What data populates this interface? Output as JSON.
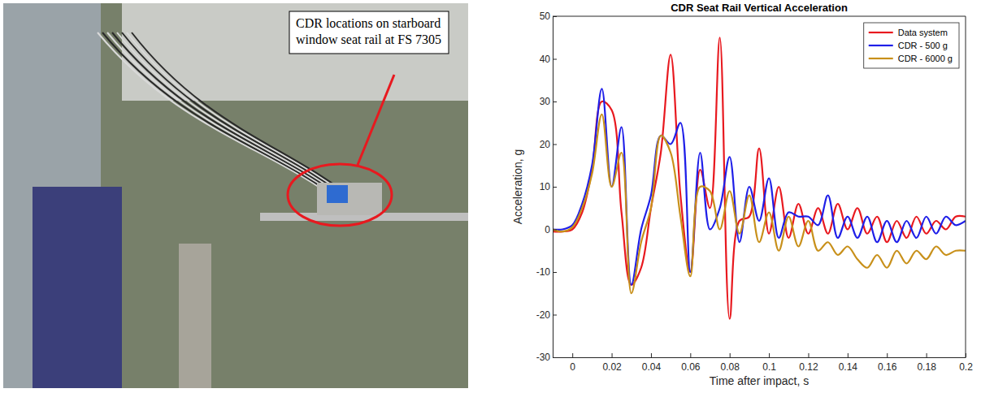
{
  "chart_data": {
    "type": "line",
    "title": "CDR Seat Rail Vertical Acceleration",
    "x_label": "Time after impact, s",
    "y_label": "Acceleration, g",
    "x": [
      -0.01,
      -0.005,
      0,
      0.005,
      0.01,
      0.015,
      0.02,
      0.025,
      0.03,
      0.035,
      0.04,
      0.045,
      0.05,
      0.055,
      0.06,
      0.065,
      0.07,
      0.075,
      0.08,
      0.085,
      0.09,
      0.095,
      0.1,
      0.105,
      0.11,
      0.115,
      0.12,
      0.125,
      0.13,
      0.135,
      0.14,
      0.145,
      0.15,
      0.155,
      0.16,
      0.165,
      0.17,
      0.175,
      0.18,
      0.185,
      0.19,
      0.195,
      0.2
    ],
    "series": [
      {
        "name": "Data system",
        "color": "#e8191f",
        "values": [
          -0.5,
          -0.5,
          0,
          4,
          14,
          30,
          28,
          4,
          -13,
          -9,
          5,
          18,
          41,
          8,
          -10,
          14,
          5,
          45,
          -21,
          2,
          3,
          19,
          -1,
          10,
          -2,
          6,
          -1,
          5,
          -1,
          6,
          0,
          5,
          -1,
          3,
          -3,
          2,
          -2,
          3,
          -1,
          2,
          0,
          3,
          3
        ]
      },
      {
        "name": "CDR - 500 g",
        "color": "#1f1fe8",
        "values": [
          0,
          0,
          1,
          6,
          15,
          33,
          10,
          24,
          -13,
          0,
          8,
          22,
          20,
          25,
          -10,
          18,
          0,
          5,
          17,
          -3,
          10,
          2,
          12,
          -2,
          4,
          3,
          3,
          1,
          8,
          -2,
          3,
          -2,
          3,
          -3,
          2,
          -3,
          2,
          -2,
          3,
          -1,
          3,
          1,
          2
        ]
      },
      {
        "name": "CDR - 6000 g",
        "color": "#c8901a",
        "values": [
          0,
          -0.5,
          0.5,
          5,
          13,
          27,
          10,
          18,
          -15,
          -3,
          5,
          22,
          18,
          3,
          -11,
          10,
          9,
          0,
          9,
          -1,
          8,
          -3,
          4,
          -5,
          3,
          -4,
          2,
          -5,
          -3,
          -6,
          -4,
          -7,
          -9,
          -6,
          -9,
          -5,
          -8,
          -5,
          -7,
          -4,
          -6,
          -5,
          -5
        ]
      }
    ],
    "xlim": [
      -0.01,
      0.2
    ],
    "xticks": [
      0,
      0.02,
      0.04,
      0.06,
      0.08,
      0.1,
      0.12,
      0.14,
      0.16,
      0.18,
      0.2
    ],
    "ylim": [
      -30,
      50
    ],
    "yticks": [
      -30,
      -20,
      -10,
      0,
      10,
      20,
      30,
      40,
      50
    ],
    "grid": false,
    "legend": "top-right"
  },
  "photo": {
    "callout": "CDR locations on starboard window seat rail at FS 7305"
  }
}
